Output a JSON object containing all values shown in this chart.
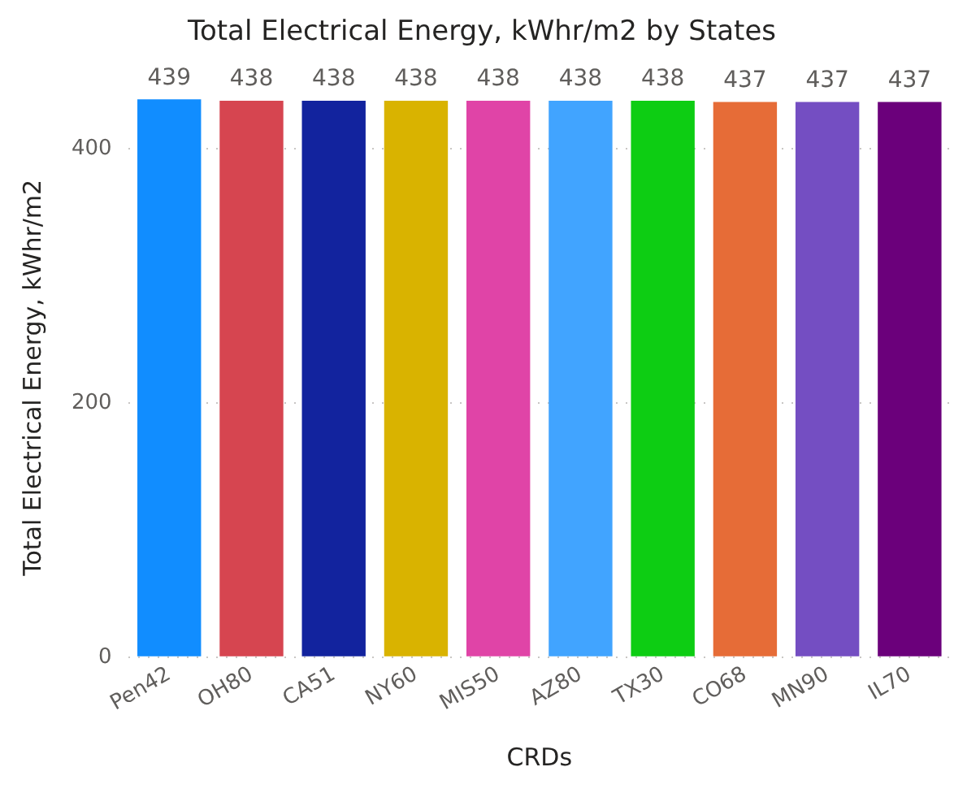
{
  "chart_data": {
    "type": "bar",
    "title": "Total Electrical Energy, kWhr/m2 by States",
    "xlabel": "CRDs",
    "ylabel": "Total Electrical Energy, kWhr/m2",
    "categories": [
      "Pen42",
      "OH80",
      "CA51",
      "NY60",
      "MIS50",
      "AZ80",
      "TX30",
      "CO68",
      "MN90",
      "IL70"
    ],
    "values": [
      439,
      438,
      438,
      438,
      438,
      438,
      438,
      437,
      437,
      437
    ],
    "colors": [
      "#118dff",
      "#d64550",
      "#12239e",
      "#d9b300",
      "#e044a7",
      "#41a4ff",
      "#0dcd13",
      "#e66c37",
      "#744ec2",
      "#6b007b"
    ],
    "ylim": [
      0,
      440
    ],
    "yticks": [
      0,
      200,
      400
    ],
    "grid": "y",
    "data_labels": true
  }
}
